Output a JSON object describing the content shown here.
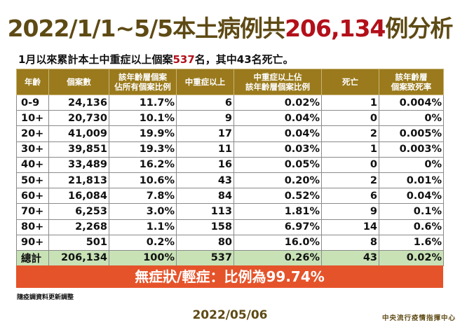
{
  "title": {
    "prefix": "2022/1/1~5/5本土病例共",
    "highlight": "206,134",
    "suffix": "例分析"
  },
  "subtitle": {
    "prefix": "1月以來累計本土中重症以上個案",
    "highlight": "537",
    "suffix": "名，其中43名死亡。"
  },
  "table": {
    "headers": [
      "年齡",
      "個案數",
      "該年齡層個案\n佔所有個案比例",
      "中重症以上",
      "中重症以上佔\n該年齡層個案比例",
      "死亡",
      "該年齡層\n個案致死率"
    ],
    "rows": [
      [
        "0-9",
        "24,136",
        "11.7%",
        "6",
        "0.02%",
        "1",
        "0.004%"
      ],
      [
        "10+",
        "20,730",
        "10.1%",
        "9",
        "0.04%",
        "0",
        "0%"
      ],
      [
        "20+",
        "41,009",
        "19.9%",
        "17",
        "0.04%",
        "2",
        "0.005%"
      ],
      [
        "30+",
        "39,851",
        "19.3%",
        "11",
        "0.03%",
        "1",
        "0.003%"
      ],
      [
        "40+",
        "33,489",
        "16.2%",
        "16",
        "0.05%",
        "0",
        "0%"
      ],
      [
        "50+",
        "21,813",
        "10.6%",
        "43",
        "0.20%",
        "2",
        "0.01%"
      ],
      [
        "60+",
        "16,084",
        "7.8%",
        "84",
        "0.52%",
        "6",
        "0.04%"
      ],
      [
        "70+",
        "6,253",
        "3.0%",
        "113",
        "1.81%",
        "9",
        "0.1%"
      ],
      [
        "80+",
        "2,268",
        "1.1%",
        "158",
        "6.97%",
        "14",
        "0.6%"
      ],
      [
        "90+",
        "501",
        "0.2%",
        "80",
        "16.0%",
        "8",
        "1.6%"
      ]
    ],
    "total": [
      "總計",
      "206,134",
      "100%",
      "537",
      "0.26%",
      "43",
      "0.02%"
    ]
  },
  "banner": "無症狀/輕症：比例為99.74%",
  "note": "隨疫調資料更新調整",
  "date": "2022/05/06",
  "org": "中央流行疫情指揮中心",
  "colors": {
    "title": "#5e4a14",
    "highlight": "#b3101a",
    "header_bg": "#9a7a1c",
    "total_bg": "#c8e2b6",
    "banner_bg": "#e5532a"
  }
}
